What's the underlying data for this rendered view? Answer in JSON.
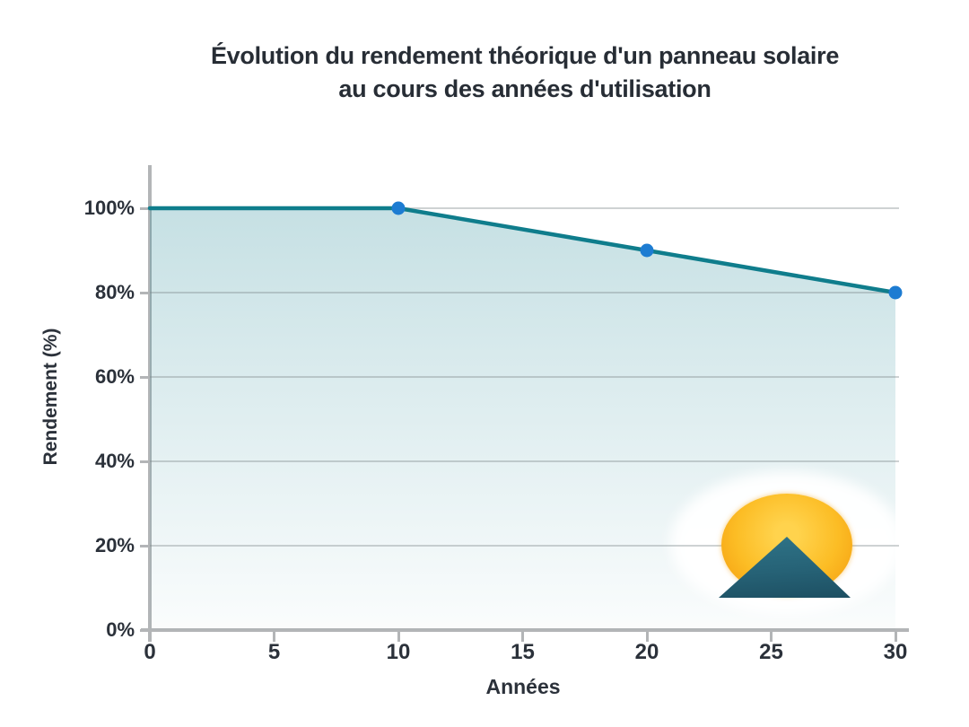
{
  "page": {
    "background": "#ffffff"
  },
  "chart_data": {
    "type": "line",
    "title": "Évolution du rendement théorique d'un panneau solaire au cours des années d'utilisation",
    "title_line1": "Évolution du rendement théorique d'un panneau solaire",
    "title_line2": "au cours des années d'utilisation",
    "xlabel": "Années",
    "ylabel": "Rendement (%)",
    "series": [
      {
        "x": [
          0,
          10,
          20,
          30
        ],
        "y": [
          100,
          100,
          90,
          80
        ]
      }
    ],
    "marked_points": [
      [
        10,
        100
      ],
      [
        20,
        90
      ],
      [
        30,
        80
      ]
    ],
    "xticks": [
      0,
      5,
      10,
      15,
      20,
      25,
      30
    ],
    "ytick_values": [
      0,
      20,
      40,
      60,
      80,
      100
    ],
    "ytick_labels": [
      "0%",
      "20%",
      "40%",
      "60%",
      "80%",
      "100%"
    ],
    "xlim": [
      0,
      30
    ],
    "ylim": [
      0,
      100
    ],
    "grid": "horizontal-only",
    "legend": "none",
    "area_fill": "gradient teal fading to white under the line",
    "colors": {
      "line": "#0f7d8c",
      "marker": "#1d7cd2",
      "fill_top": "rgba(15,125,140,0.24)",
      "fill_bottom": "rgba(15,125,140,0.02)",
      "axis": "#b3b5b7",
      "gridline": "rgba(125,136,140,0.38)",
      "text": "#2b313a",
      "sun_inner": "#ffd34d",
      "sun_outer": "#f49d0f",
      "mountain_top": "#2f7488",
      "mountain_bottom": "#1d4f62"
    },
    "logo": {
      "name": "sun-behind-mountain-logo",
      "position": "lower-right of plot"
    }
  }
}
